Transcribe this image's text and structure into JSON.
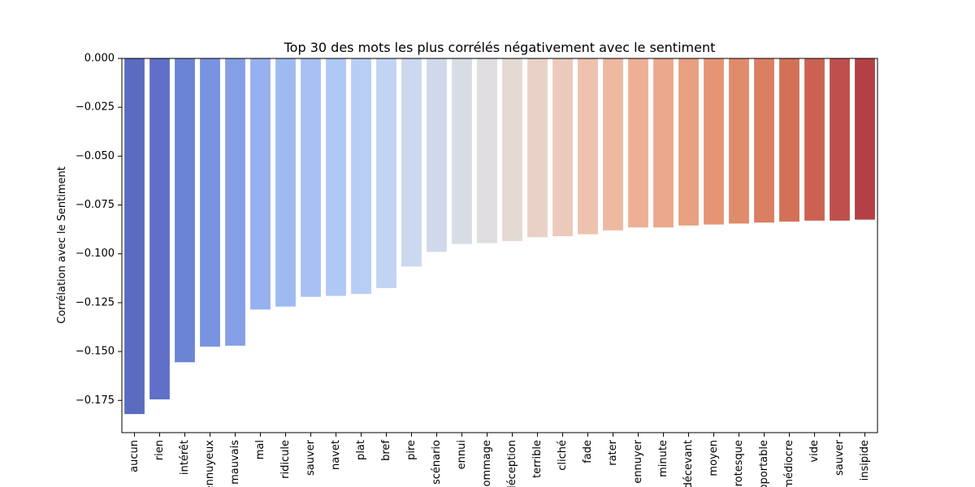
{
  "chart_data": {
    "type": "bar",
    "title": "Top 30 des mots les plus corrélés négativement avec le sentiment",
    "xlabel": "",
    "ylabel": "Corrélation avec le Sentiment",
    "ylim": [
      -0.1915,
      0.0
    ],
    "yticks": [
      0.0,
      -0.025,
      -0.05,
      -0.075,
      -0.1,
      -0.125,
      -0.15,
      -0.175
    ],
    "ytick_labels": [
      "0.000",
      "−0.025",
      "−0.050",
      "−0.075",
      "−0.100",
      "−0.125",
      "−0.150",
      "−0.175"
    ],
    "colormap": "coolwarm",
    "grid": false,
    "categories": [
      "aucun",
      "rien",
      "intérêt",
      "ennuyeux",
      "mauvais",
      "mal",
      "ridicule",
      "sauver",
      "navet",
      "plat",
      "bref",
      "pire",
      "scénario",
      "ennui",
      "dommage",
      "déception",
      "terrible",
      "cliché",
      "fade",
      "rater",
      "ennuyer",
      "minute",
      "décevant",
      "moyen",
      "grotesque",
      "supportable",
      "médiocre",
      "vide",
      "sauver",
      "insipide"
    ],
    "values": [
      -0.182,
      -0.1745,
      -0.1555,
      -0.1475,
      -0.147,
      -0.1285,
      -0.127,
      -0.122,
      -0.1215,
      -0.1205,
      -0.1175,
      -0.1065,
      -0.099,
      -0.095,
      -0.0945,
      -0.0935,
      -0.0915,
      -0.091,
      -0.09,
      -0.088,
      -0.0865,
      -0.0865,
      -0.0855,
      -0.085,
      -0.0845,
      -0.084,
      -0.0835,
      -0.083,
      -0.083,
      -0.0825
    ],
    "colors": [
      "#5a6bc0",
      "#6070c8",
      "#6b84d5",
      "#7a93e0",
      "#859fe6",
      "#96b1ee",
      "#9ebbf1",
      "#a8c0f3",
      "#b0c8f4",
      "#b8cef5",
      "#c2d4f3",
      "#cbd8ef",
      "#d0d9eb",
      "#d8dde5",
      "#dfdde0",
      "#e5d9d3",
      "#e8d2c7",
      "#ebcabc",
      "#edc2ae",
      "#eeb9a1",
      "#edb097",
      "#eba88c",
      "#e8a080",
      "#e59575",
      "#e08b6c",
      "#da7f62",
      "#d37158",
      "#cb6152",
      "#bf4f4c",
      "#b44045"
    ]
  }
}
